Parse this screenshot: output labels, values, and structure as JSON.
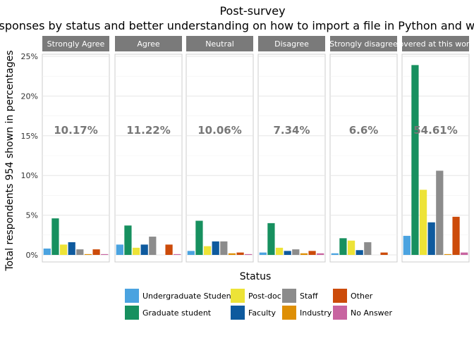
{
  "chart_data": {
    "type": "bar",
    "title": "Post-survey",
    "subtitle": "Responses by status and better understanding on how to import a file in Python and work with",
    "xlabel": "Status",
    "ylabel": "Total respondents 954 shown in percentages",
    "ylim": [
      0,
      25
    ],
    "y_ticks": [
      "0%",
      "5%",
      "10%",
      "15%",
      "20%",
      "25%"
    ],
    "grid": true,
    "legend_position": "bottom",
    "facets": [
      {
        "label": "Strongly Agree",
        "total_label": "10.17%",
        "values": [
          0.8,
          4.6,
          1.3,
          1.6,
          0.7,
          0.1,
          0.7,
          0.1
        ]
      },
      {
        "label": "Agree",
        "total_label": "11.22%",
        "values": [
          1.3,
          3.7,
          0.9,
          1.3,
          2.3,
          0.0,
          1.3,
          0.1
        ]
      },
      {
        "label": "Neutral",
        "total_label": "10.06%",
        "values": [
          0.5,
          4.3,
          1.1,
          1.7,
          1.7,
          0.2,
          0.3,
          0.1
        ]
      },
      {
        "label": "Disagree",
        "total_label": "7.34%",
        "values": [
          0.3,
          4.0,
          0.9,
          0.5,
          0.7,
          0.2,
          0.5,
          0.2
        ]
      },
      {
        "label": "Strongly disagree",
        "total_label": "6.6%",
        "values": [
          0.2,
          2.1,
          1.8,
          0.6,
          1.6,
          0.0,
          0.3,
          0.0
        ]
      },
      {
        "label": "Not covered at this workshop",
        "total_label": "54.61%",
        "values": [
          2.4,
          23.9,
          8.2,
          4.1,
          10.6,
          0.1,
          4.8,
          0.3
        ]
      }
    ],
    "series": [
      {
        "name": "Undergraduate Student",
        "color": "#4ba3e0"
      },
      {
        "name": "Graduate student",
        "color": "#17905f"
      },
      {
        "name": "Post-doc",
        "color": "#ede337"
      },
      {
        "name": "Faculty",
        "color": "#0e5a9e"
      },
      {
        "name": "Staff",
        "color": "#8c8c8c"
      },
      {
        "name": "Industry",
        "color": "#de8f05"
      },
      {
        "name": "Other",
        "color": "#cc4b0a"
      },
      {
        "name": "No Answer",
        "color": "#c864a0"
      }
    ]
  }
}
